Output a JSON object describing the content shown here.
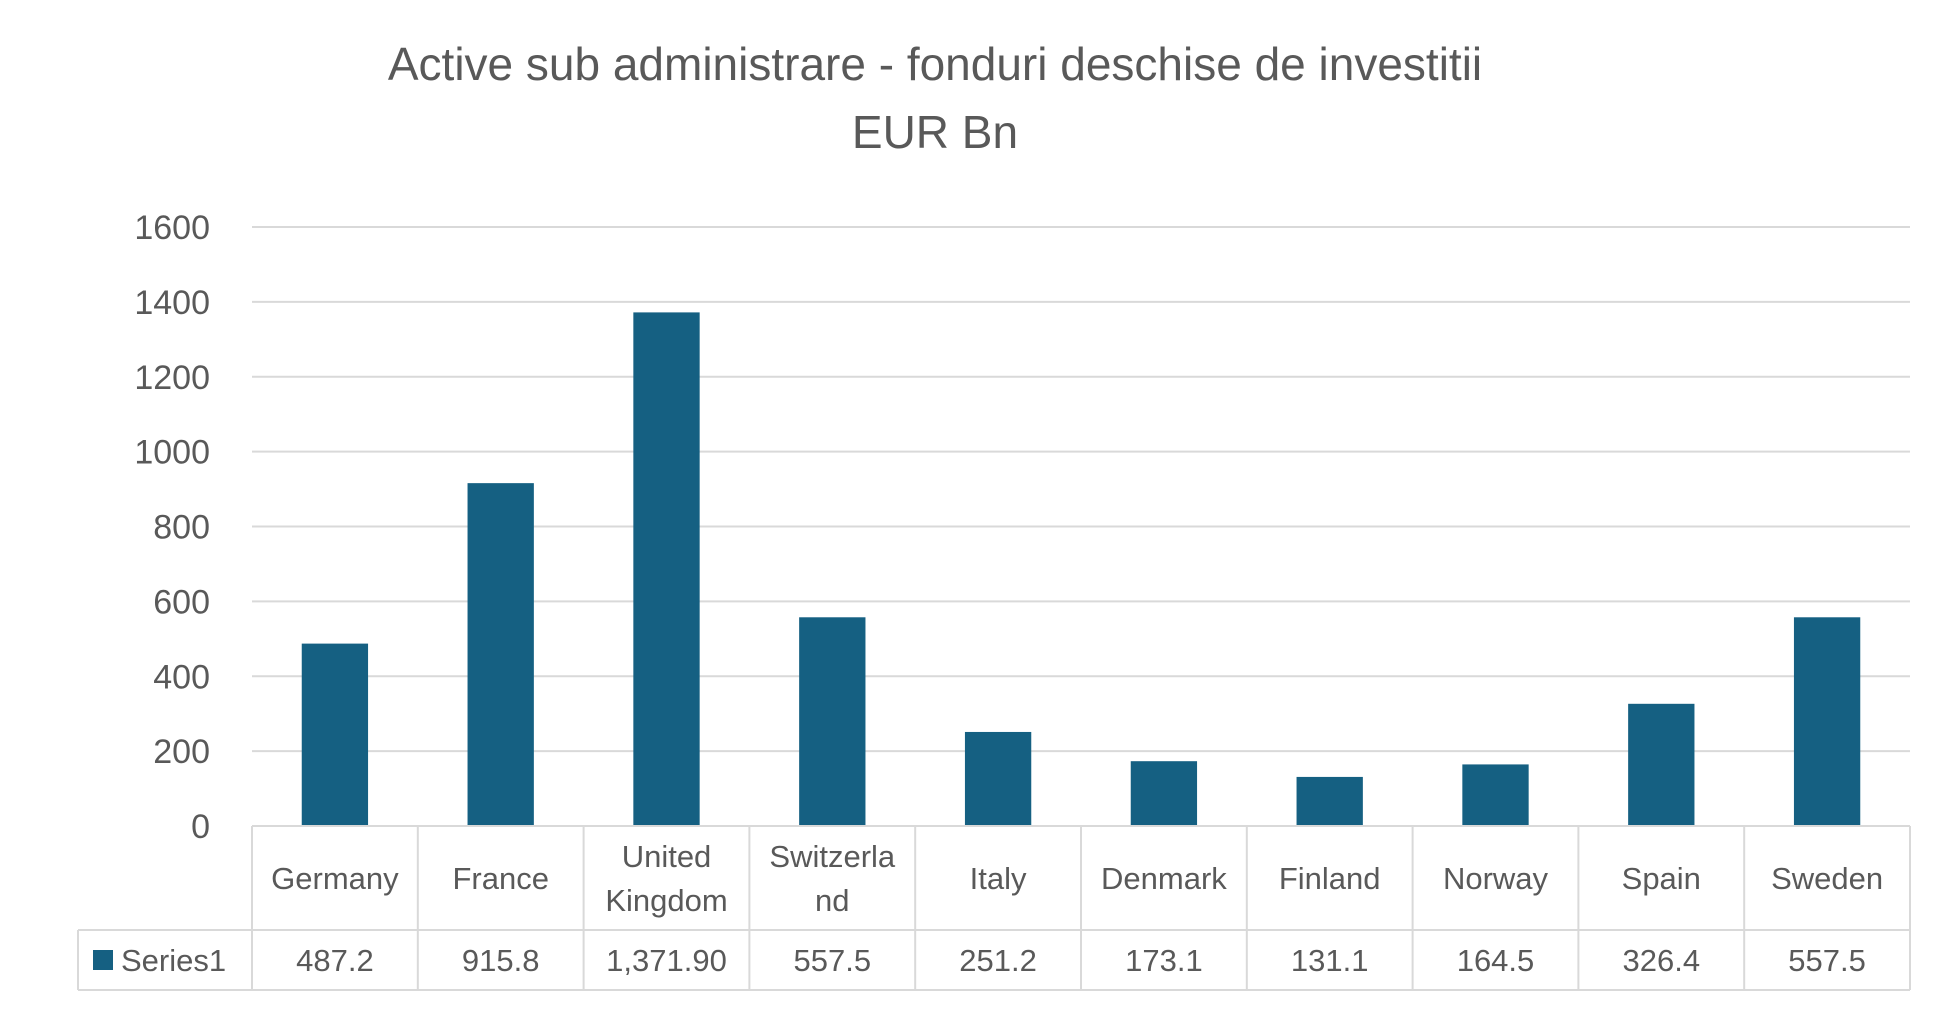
{
  "chart_data": {
    "type": "bar",
    "title": "Active sub administrare - fonduri deschise de investitii",
    "subtitle": "EUR Bn",
    "categories": [
      "Germany",
      "France",
      "United Kingdom",
      "Switzerland",
      "Italy",
      "Denmark",
      "Finland",
      "Norway",
      "Spain",
      "Sweden"
    ],
    "category_display": [
      [
        "Germany"
      ],
      [
        "France"
      ],
      [
        "United",
        "Kingdom"
      ],
      [
        "Switzerla",
        "nd"
      ],
      [
        "Italy"
      ],
      [
        "Denmark"
      ],
      [
        "Finland"
      ],
      [
        "Norway"
      ],
      [
        "Spain"
      ],
      [
        "Sweden"
      ]
    ],
    "series": [
      {
        "name": "Series1",
        "values": [
          487.2,
          915.8,
          1371.9,
          557.5,
          251.2,
          173.1,
          131.1,
          164.5,
          326.4,
          557.5
        ],
        "value_labels": [
          "487.2",
          "915.8",
          "1,371.90",
          "557.5",
          "251.2",
          "173.1",
          "131.1",
          "164.5",
          "326.4",
          "557.5"
        ],
        "color": "#156082"
      }
    ],
    "ylim": [
      0,
      1600
    ],
    "yticks": [
      0,
      200,
      400,
      600,
      800,
      1000,
      1200,
      1400,
      1600
    ],
    "grid": true,
    "data_table": true,
    "legend_placement": "data-table-left",
    "colors": {
      "bar": "#156082",
      "grid": "#d9d9d9",
      "text": "#595959",
      "table_border": "#d9d9d9"
    }
  }
}
